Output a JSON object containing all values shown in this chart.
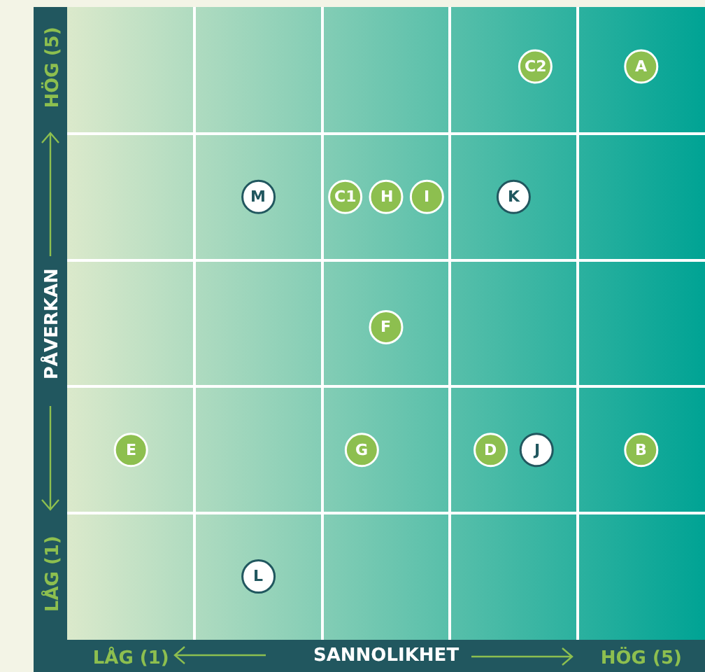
{
  "chart_data": {
    "type": "scatter",
    "xlabel": "SANNOLIKHET",
    "ylabel": "PÅVERKAN",
    "xlim": [
      0.5,
      5.5
    ],
    "ylim": [
      0.5,
      5.5
    ],
    "xticks": [
      {
        "value": 1,
        "label": "LÅG (1)"
      },
      {
        "value": 5,
        "label": "HÖG (5)"
      }
    ],
    "yticks": [
      {
        "value": 1,
        "label": "LÅG (1)"
      },
      {
        "value": 5,
        "label": "HÖG (5)"
      }
    ],
    "series": [
      {
        "color": "#8dbf4f",
        "x": [
          4.17,
          5,
          2.68,
          3,
          3.32,
          3,
          1,
          2.81,
          3.82,
          5
        ],
        "values": [
          5.03,
          5.03,
          4,
          4,
          4,
          2.97,
          2,
          2,
          2,
          2
        ]
      },
      {
        "color": "#ffffff",
        "x": [
          2,
          4,
          4.18,
          2
        ],
        "values": [
          4,
          4,
          2,
          1
        ]
      }
    ],
    "annotations": [
      {
        "text": "C2",
        "x": 4.17,
        "y": 5.03
      },
      {
        "text": "A",
        "x": 5,
        "y": 5.03
      },
      {
        "text": "M",
        "x": 2,
        "y": 4
      },
      {
        "text": "C1",
        "x": 2.68,
        "y": 4
      },
      {
        "text": "H",
        "x": 3,
        "y": 4
      },
      {
        "text": "I",
        "x": 3.32,
        "y": 4
      },
      {
        "text": "K",
        "x": 4,
        "y": 4
      },
      {
        "text": "F",
        "x": 3,
        "y": 2.97
      },
      {
        "text": "E",
        "x": 1,
        "y": 2
      },
      {
        "text": "G",
        "x": 2.81,
        "y": 2
      },
      {
        "text": "D",
        "x": 3.82,
        "y": 2
      },
      {
        "text": "J",
        "x": 4.18,
        "y": 2
      },
      {
        "text": "B",
        "x": 5,
        "y": 2
      },
      {
        "text": "L",
        "x": 2,
        "y": 1
      }
    ],
    "grid": true,
    "marker": "circle"
  }
}
